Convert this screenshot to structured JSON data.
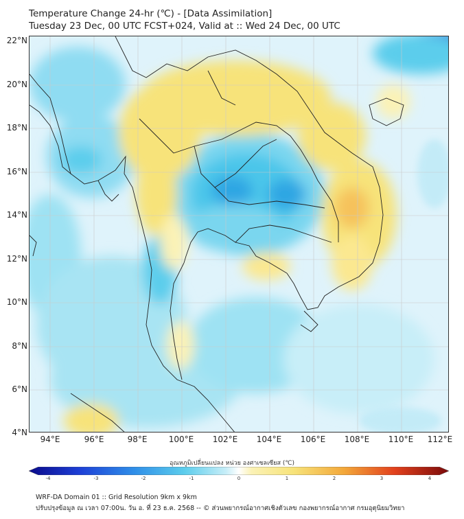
{
  "title_line1": "Temperature Change 24-hr (℃) - [Data Assimilation]",
  "title_line2": "Tuesday 23 Dec, 00 UTC FCST+024, Valid at :: Wed 24 Dec, 00 UTC",
  "map": {
    "lat_labels": [
      "22°N",
      "20°N",
      "18°N",
      "16°N",
      "14°N",
      "12°N",
      "10°N",
      "8°N",
      "6°N",
      "4°N"
    ],
    "lon_labels": [
      "94°E",
      "96°E",
      "98°E",
      "100°E",
      "102°E",
      "104°E",
      "106°E",
      "108°E",
      "110°E",
      "112°E"
    ],
    "colors": {
      "background": "#dff3fb",
      "light_blue": "#9ee2f3",
      "blue": "#5ccdec",
      "deep_blue": "#2ea6e3",
      "light_yellow": "#fbf2b6",
      "yellow": "#f7e37a",
      "orange": "#f6c25c",
      "navy": "#1d3fd6"
    }
  },
  "colorbar": {
    "title": "อุณหภูมิเปลี่ยนแปลง หน่วย องศาเซลเซียส (℃)",
    "ticks": [
      "-4",
      "-3",
      "-2",
      "-1",
      "0",
      "1",
      "2",
      "3",
      "4"
    ],
    "range": [
      -4,
      4
    ]
  },
  "footer": {
    "line1": "WRF-DA Domain 01 :: Grid Resolution 9km x 9km",
    "line2": "ปรับปรุงข้อมูล ณ เวลา 07:00น. วัน อ. ที่ 23 ธ.ค. 2568 -- © ส่วนพยากรณ์อากาศเชิงตัวเลข กองพยากรณ์อากาศ กรมอุตุนิยมวิทยา"
  }
}
